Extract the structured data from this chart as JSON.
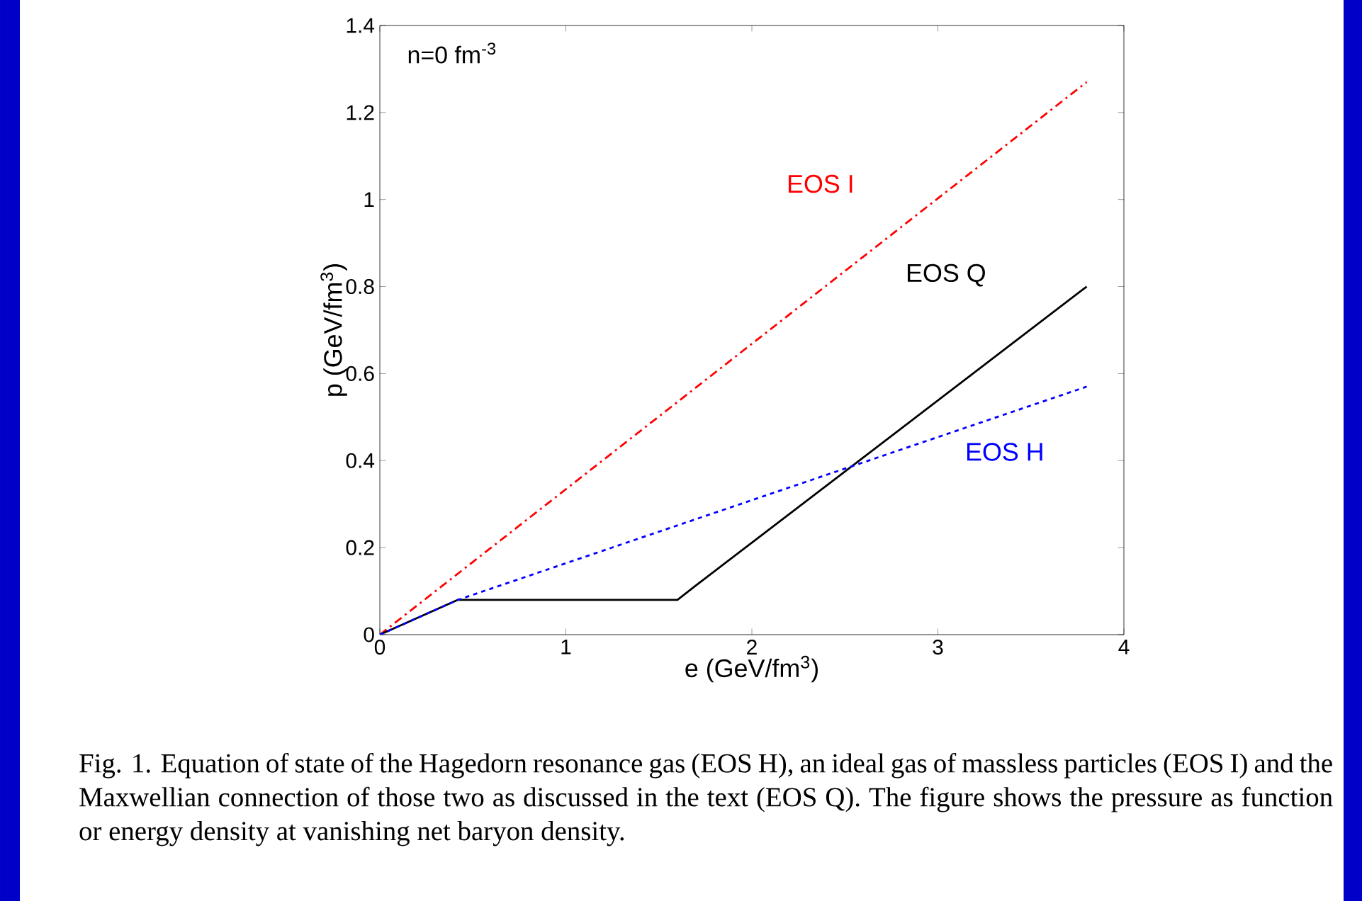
{
  "chart_data": {
    "type": "line",
    "xlabel": "e (GeV/fm$^{3}$)",
    "ylabel": "p (GeV/fm$^{3}$)",
    "xlim": [
      0,
      4
    ],
    "ylim": [
      0,
      1.4
    ],
    "xticks": [
      0,
      1,
      2,
      3,
      4
    ],
    "yticks": [
      0,
      0.2,
      0.4,
      0.6,
      0.8,
      1,
      1.2,
      1.4
    ],
    "series": [
      {
        "name": "EOS I",
        "color": "#ff0000",
        "line_style": "dashdot",
        "x": [
          0,
          3.8
        ],
        "values": [
          0,
          1.27
        ]
      },
      {
        "name": "EOS Q",
        "color": "#000000",
        "line_style": "solid",
        "x": [
          0,
          0.42,
          1.6,
          1.69,
          3.8
        ],
        "values": [
          0,
          0.08,
          0.08,
          0.11,
          0.8
        ]
      },
      {
        "name": "EOS H",
        "color": "#0000ff",
        "line_style": "dashed",
        "x": [
          0,
          0.42,
          3.8
        ],
        "values": [
          0,
          0.08,
          0.57
        ]
      }
    ],
    "annotations": [
      "n=0 fm$^{-3}$",
      "Fig. 1. Equation of state of the Hagedorn resonance gas (EOS H), an ideal gas of massless particles (EOS I) and the Maxwellian connection of those two as discussed in the text (EOS Q). The figure shows the pressure as function or energy density at vanishing net baryon density."
    ],
    "grid": false
  }
}
